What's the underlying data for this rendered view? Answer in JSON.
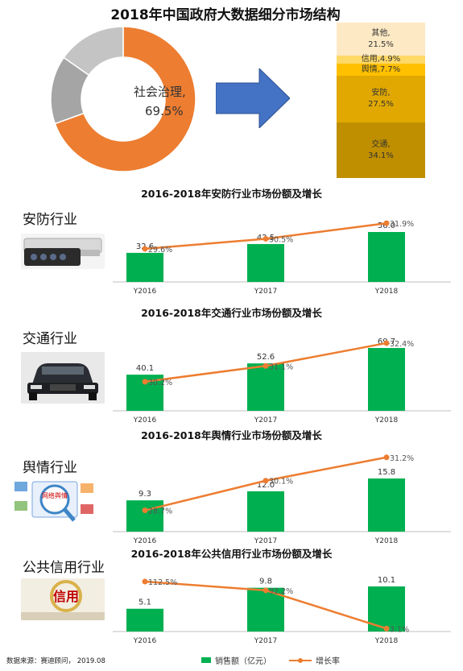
{
  "title": "2018年中国政府大数据细分市场结构",
  "donut": {
    "label": "社会治理,",
    "value": "69.5%",
    "slices": [
      {
        "value": 69.5,
        "color": "#ed7d31"
      },
      {
        "value": 15.2,
        "color": "#a5a5a5"
      },
      {
        "value": 15.3,
        "color": "#c4c4c4"
      }
    ]
  },
  "stack": [
    {
      "name": "交通,",
      "pct": "34.1%",
      "value": 34.1,
      "color": "#bf8f00"
    },
    {
      "name": "安防,",
      "pct": "27.5%",
      "value": 27.5,
      "color": "#e0a800"
    },
    {
      "name": "舆情,",
      "pct": "7.7%",
      "value": 7.7,
      "color": "#ffc000"
    },
    {
      "name": "信用,",
      "pct": "4.9%",
      "value": 4.9,
      "color": "#ffd966"
    },
    {
      "name": "其他,",
      "pct": "21.5%",
      "value": 21.5,
      "color": "#fde9c4"
    }
  ],
  "sections": [
    {
      "label": "安防行业",
      "title": "2016-2018年安防行业市场份额及增长"
    },
    {
      "label": "交通行业",
      "title": "2016-2018年交通行业市场份额及增长"
    },
    {
      "label": "舆情行业",
      "title": "2016-2018年舆情行业市场份额及增长"
    },
    {
      "label": "公共信用行业",
      "title": "2016-2018年公共信用行业市场份额及增长"
    }
  ],
  "photo_texts": {
    "yuqing_tag": "网络舆情",
    "xinyong_tag": "信用"
  },
  "legend": {
    "bar": "销售额（亿元）",
    "line": "增长率"
  },
  "source": "数据来源：赛迪顾问，  2019.08",
  "colors": {
    "bar": "#00b050",
    "line": "#ed7d31",
    "axis": "#bfbfbf"
  },
  "chart_data": [
    {
      "type": "bar",
      "categories": [
        "Y2016",
        "Y2017",
        "Y2018"
      ],
      "series": [
        {
          "name": "销售额（亿元）",
          "values": [
            32.6,
            42.5,
            56.0
          ],
          "labels": [
            "32.6",
            "42.5",
            "56.0"
          ]
        },
        {
          "name": "增长率",
          "values": [
            29.6,
            30.5,
            31.9
          ],
          "labels": [
            "29.6%",
            "30.5%",
            "31.9%"
          ]
        }
      ]
    },
    {
      "type": "bar",
      "categories": [
        "Y2016",
        "Y2017",
        "Y2018"
      ],
      "series": [
        {
          "name": "销售额（亿元）",
          "values": [
            40.1,
            52.6,
            69.7
          ],
          "labels": [
            "40.1",
            "52.6",
            "69.7"
          ]
        },
        {
          "name": "增长率",
          "values": [
            30.2,
            31.1,
            32.4
          ],
          "labels": [
            "30.2%",
            "31.1%",
            "32.4%"
          ]
        }
      ]
    },
    {
      "type": "bar",
      "categories": [
        "Y2016",
        "Y2017",
        "Y2018"
      ],
      "series": [
        {
          "name": "销售额（亿元）",
          "values": [
            9.3,
            12.0,
            15.8
          ],
          "labels": [
            "9.3",
            "12.0",
            "15.8"
          ]
        },
        {
          "name": "增长率",
          "values": [
            28.7,
            30.1,
            31.2
          ],
          "labels": [
            "28.7%",
            "30.1%",
            "31.2%"
          ]
        }
      ]
    },
    {
      "type": "bar",
      "categories": [
        "Y2016",
        "Y2017",
        "Y2018"
      ],
      "series": [
        {
          "name": "销售额（亿元）",
          "values": [
            5.1,
            9.8,
            10.1
          ],
          "labels": [
            "5.1",
            "9.8",
            "10.1"
          ]
        },
        {
          "name": "增长率",
          "values": [
            112.5,
            92.2,
            3.1
          ],
          "labels": [
            "112.5%",
            "92.2%",
            "3.1%"
          ]
        }
      ]
    }
  ]
}
